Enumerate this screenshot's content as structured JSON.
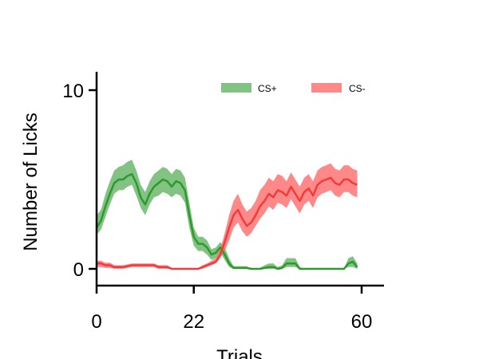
{
  "chart_data": {
    "type": "line",
    "xlabel": "Trials",
    "ylabel": "Number of Licks",
    "xlim": [
      0,
      65
    ],
    "ylim": [
      -1,
      11
    ],
    "xticks": [
      0,
      22,
      60
    ],
    "yticks": [
      0,
      10
    ],
    "grid": false,
    "legend_placement": "top-right",
    "x": [
      0,
      1,
      2,
      3,
      4,
      5,
      6,
      7,
      8,
      9,
      10,
      11,
      12,
      13,
      14,
      15,
      16,
      17,
      18,
      19,
      20,
      21,
      22,
      23,
      24,
      25,
      26,
      27,
      28,
      29,
      30,
      31,
      32,
      33,
      34,
      35,
      36,
      37,
      38,
      39,
      40,
      41,
      42,
      43,
      44,
      45,
      46,
      47,
      48,
      49,
      50,
      51,
      52,
      53,
      54,
      55,
      56,
      57,
      58,
      59
    ],
    "series": [
      {
        "name": "CS+",
        "color": "#2e9a2e",
        "band_color": "#2e9a2e",
        "mean": [
          2.3,
          2.7,
          3.5,
          4.2,
          4.8,
          5.0,
          5.0,
          5.2,
          5.3,
          4.8,
          4.0,
          3.6,
          4.2,
          4.6,
          4.8,
          5.0,
          4.9,
          4.6,
          4.9,
          4.8,
          4.4,
          3.0,
          1.8,
          1.4,
          1.4,
          1.2,
          0.8,
          0.9,
          1.2,
          0.8,
          0.3,
          0.05,
          0.05,
          0.05,
          0.05,
          0.0,
          0.0,
          0.0,
          0.05,
          0.1,
          0.1,
          0.0,
          0.05,
          0.3,
          0.3,
          0.3,
          0.0,
          0.0,
          0.0,
          0.0,
          0.0,
          0.0,
          0.0,
          0.0,
          0.0,
          0.0,
          0.0,
          0.3,
          0.4,
          0.1
        ],
        "lower": [
          1.9,
          2.2,
          2.9,
          3.6,
          4.2,
          4.4,
          4.4,
          4.6,
          4.7,
          4.1,
          3.4,
          3.0,
          3.6,
          4.0,
          4.1,
          4.3,
          4.2,
          4.0,
          4.2,
          4.1,
          3.7,
          2.3,
          1.3,
          1.0,
          1.0,
          0.8,
          0.5,
          0.6,
          0.9,
          0.5,
          0.1,
          0.0,
          0.0,
          0.0,
          0.0,
          0.0,
          0.0,
          0.0,
          0.0,
          0.0,
          0.0,
          0.0,
          0.0,
          0.1,
          0.1,
          0.1,
          0.0,
          0.0,
          0.0,
          0.0,
          0.0,
          0.0,
          0.0,
          0.0,
          0.0,
          0.0,
          0.0,
          0.1,
          0.1,
          0.0
        ],
        "upper": [
          3.0,
          3.3,
          4.2,
          4.9,
          5.5,
          5.7,
          5.8,
          6.0,
          6.1,
          5.5,
          4.7,
          4.3,
          4.9,
          5.3,
          5.5,
          5.7,
          5.6,
          5.3,
          5.6,
          5.5,
          5.1,
          3.7,
          2.3,
          1.8,
          1.8,
          1.6,
          1.1,
          1.2,
          1.5,
          1.2,
          0.6,
          0.15,
          0.15,
          0.15,
          0.15,
          0.0,
          0.0,
          0.05,
          0.2,
          0.3,
          0.3,
          0.1,
          0.2,
          0.6,
          0.6,
          0.6,
          0.1,
          0.0,
          0.0,
          0.0,
          0.0,
          0.0,
          0.0,
          0.0,
          0.0,
          0.0,
          0.0,
          0.6,
          0.7,
          0.3
        ]
      },
      {
        "name": "CS-",
        "color": "#f03c3c",
        "band_color": "#ff6b6b",
        "mean": [
          0.3,
          0.3,
          0.2,
          0.2,
          0.1,
          0.1,
          0.1,
          0.15,
          0.2,
          0.2,
          0.2,
          0.2,
          0.2,
          0.2,
          0.1,
          0.1,
          0.1,
          0.0,
          0.0,
          0.0,
          0.0,
          0.0,
          0.0,
          0.0,
          0.1,
          0.2,
          0.3,
          0.4,
          0.8,
          1.5,
          2.3,
          3.0,
          3.3,
          2.8,
          2.4,
          2.6,
          3.0,
          3.5,
          3.8,
          4.2,
          4.0,
          4.4,
          4.3,
          4.1,
          4.6,
          4.2,
          3.8,
          4.3,
          4.5,
          4.1,
          4.7,
          4.9,
          5.0,
          5.1,
          4.8,
          4.7,
          5.0,
          5.0,
          4.8,
          4.7
        ],
        "lower": [
          0.1,
          0.1,
          0.05,
          0.05,
          0.0,
          0.0,
          0.0,
          0.05,
          0.1,
          0.1,
          0.1,
          0.1,
          0.1,
          0.1,
          0.0,
          0.0,
          0.0,
          0.0,
          0.0,
          0.0,
          0.0,
          0.0,
          0.0,
          0.0,
          0.0,
          0.1,
          0.2,
          0.3,
          0.6,
          1.0,
          1.6,
          2.3,
          2.6,
          2.1,
          1.8,
          2.0,
          2.4,
          2.8,
          3.1,
          3.5,
          3.3,
          3.7,
          3.6,
          3.4,
          3.9,
          3.5,
          3.1,
          3.6,
          3.8,
          3.4,
          4.0,
          4.2,
          4.3,
          4.4,
          4.1,
          4.0,
          4.3,
          4.3,
          4.1,
          4.0
        ],
        "upper": [
          0.45,
          0.45,
          0.35,
          0.35,
          0.2,
          0.2,
          0.2,
          0.25,
          0.3,
          0.3,
          0.3,
          0.3,
          0.3,
          0.3,
          0.2,
          0.2,
          0.2,
          0.05,
          0.05,
          0.05,
          0.05,
          0.05,
          0.05,
          0.05,
          0.2,
          0.3,
          0.45,
          0.6,
          1.1,
          2.0,
          3.0,
          3.8,
          4.2,
          3.6,
          3.2,
          3.4,
          3.8,
          4.4,
          4.7,
          5.1,
          4.9,
          5.3,
          5.2,
          4.9,
          5.4,
          5.0,
          4.6,
          5.1,
          5.3,
          4.9,
          5.5,
          5.7,
          5.8,
          5.9,
          5.6,
          5.5,
          5.8,
          5.8,
          5.6,
          5.5
        ]
      }
    ]
  }
}
